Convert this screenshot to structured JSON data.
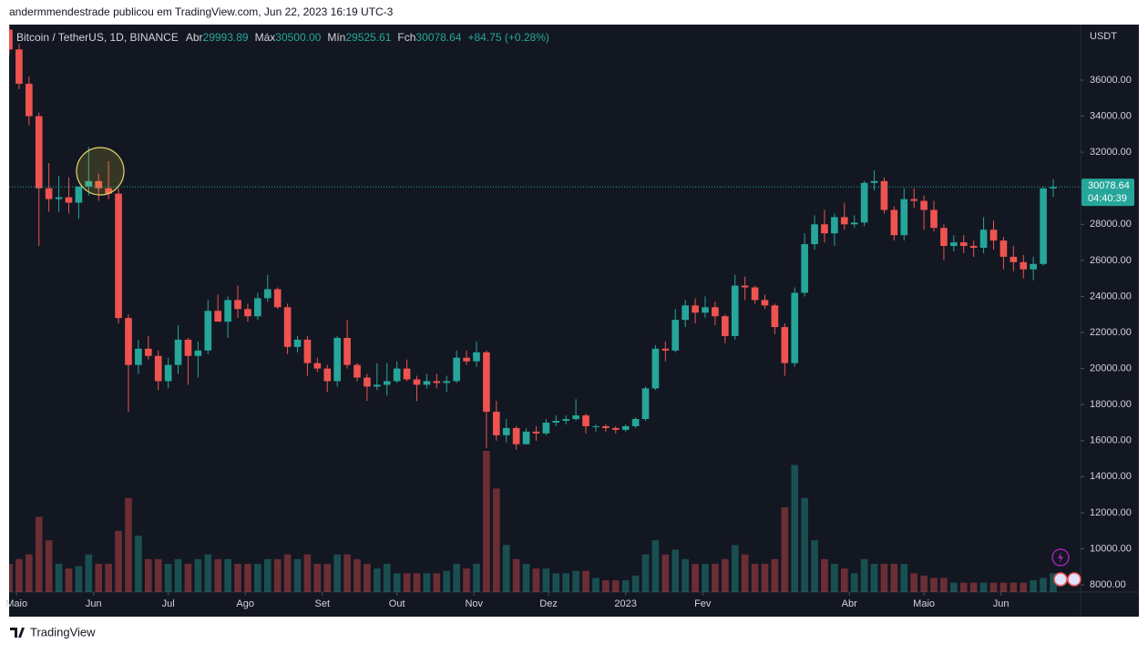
{
  "chart_data": {
    "type": "candlestick",
    "header": "andermmendestrade publicou em TradingView.com, Jun 22, 2023 16:19 UTC-3",
    "legend": {
      "symbol": "Bitcoin / TetherUS, 1D, BINANCE",
      "open_label": "Abr",
      "open": 29993.89,
      "high_label": "Máx",
      "high": {
        "value": 30500,
        "label": "30500.00"
      },
      "low_label": "Mín",
      "low": 29525.61,
      "close_label": "Fch",
      "close": 30078.64,
      "change": "+84.75 (+0.28%)"
    },
    "currency": "USDT",
    "last_price": 30078.64,
    "countdown": "04:40:39",
    "up_color": "#26a69a",
    "down_color": "#ef5350",
    "grid": false,
    "xlim": [
      "2022-04-28",
      "2023-07-03"
    ],
    "xticks": [
      {
        "value": "2022-05-01",
        "label": "Maio"
      },
      {
        "value": "2022-06-01",
        "label": "Jun"
      },
      {
        "value": "2022-07-01",
        "label": "Jul"
      },
      {
        "value": "2022-08-01",
        "label": "Ago"
      },
      {
        "value": "2022-09-01",
        "label": "Set"
      },
      {
        "value": "2022-10-01",
        "label": "Out"
      },
      {
        "value": "2022-11-01",
        "label": "Nov"
      },
      {
        "value": "2022-12-01",
        "label": "Dez"
      },
      {
        "value": "2023-01-01",
        "label": "2023"
      },
      {
        "value": "2023-02-01",
        "label": "Fev"
      },
      {
        "value": "2023-04-01",
        "label": "Abr"
      },
      {
        "value": "2023-05-01",
        "label": "Maio"
      },
      {
        "value": "2023-06-01",
        "label": "Jun"
      }
    ],
    "ylim": [
      7600,
      39080
    ],
    "yticks": [
      {
        "value": 8000,
        "label": "8000.00"
      },
      {
        "value": 10000,
        "label": "10000.00"
      },
      {
        "value": 12000,
        "label": "12000.00"
      },
      {
        "value": 14000,
        "label": "14000.00"
      },
      {
        "value": 16000,
        "label": "16000.00"
      },
      {
        "value": 18000,
        "label": "18000.00"
      },
      {
        "value": 20000,
        "label": "20000.00"
      },
      {
        "value": 22000,
        "label": "22000.00"
      },
      {
        "value": 24000,
        "label": "24000.00"
      },
      {
        "value": 26000,
        "label": "26000.00"
      },
      {
        "value": 28000,
        "label": "28000.00"
      },
      {
        "value": 30000,
        "label": "30000.00"
      },
      {
        "value": 32000,
        "label": "32000.00"
      },
      {
        "value": 34000,
        "label": "34000.00"
      },
      {
        "value": 36000,
        "label": "36000.00"
      }
    ],
    "x": [
      "2022-04-28",
      "2022-05-02",
      "2022-05-06",
      "2022-05-10",
      "2022-05-14",
      "2022-05-18",
      "2022-05-22",
      "2022-05-26",
      "2022-05-30",
      "2022-06-03",
      "2022-06-07",
      "2022-06-11",
      "2022-06-15",
      "2022-06-19",
      "2022-06-23",
      "2022-06-27",
      "2022-07-01",
      "2022-07-05",
      "2022-07-09",
      "2022-07-13",
      "2022-07-17",
      "2022-07-21",
      "2022-07-25",
      "2022-07-29",
      "2022-08-02",
      "2022-08-06",
      "2022-08-10",
      "2022-08-14",
      "2022-08-18",
      "2022-08-22",
      "2022-08-26",
      "2022-08-30",
      "2022-09-03",
      "2022-09-07",
      "2022-09-11",
      "2022-09-15",
      "2022-09-19",
      "2022-09-23",
      "2022-09-27",
      "2022-10-01",
      "2022-10-05",
      "2022-10-09",
      "2022-10-13",
      "2022-10-17",
      "2022-10-21",
      "2022-10-25",
      "2022-10-29",
      "2022-11-02",
      "2022-11-06",
      "2022-11-10",
      "2022-11-14",
      "2022-11-18",
      "2022-11-22",
      "2022-11-26",
      "2022-11-30",
      "2022-12-04",
      "2022-12-08",
      "2022-12-12",
      "2022-12-16",
      "2022-12-20",
      "2022-12-24",
      "2022-12-28",
      "2023-01-01",
      "2023-01-05",
      "2023-01-09",
      "2023-01-13",
      "2023-01-17",
      "2023-01-21",
      "2023-01-25",
      "2023-01-29",
      "2023-02-02",
      "2023-02-06",
      "2023-02-10",
      "2023-02-14",
      "2023-02-18",
      "2023-02-22",
      "2023-02-26",
      "2023-03-02",
      "2023-03-06",
      "2023-03-10",
      "2023-03-14",
      "2023-03-18",
      "2023-03-22",
      "2023-03-26",
      "2023-03-30",
      "2023-04-03",
      "2023-04-07",
      "2023-04-11",
      "2023-04-15",
      "2023-04-19",
      "2023-04-23",
      "2023-04-27",
      "2023-05-01",
      "2023-05-05",
      "2023-05-09",
      "2023-05-13",
      "2023-05-17",
      "2023-05-21",
      "2023-05-25",
      "2023-05-29",
      "2023-06-02",
      "2023-06-06",
      "2023-06-10",
      "2023-06-14",
      "2023-06-18",
      "2023-06-22"
    ],
    "open": [
      38800,
      37700,
      35800,
      34000,
      30000,
      29400,
      29500,
      29200,
      30100,
      30400,
      30000,
      29700,
      22800,
      20200,
      21100,
      20700,
      19300,
      20200,
      21600,
      20700,
      21000,
      23200,
      22600,
      23800,
      23300,
      22900,
      23900,
      24400,
      23400,
      21200,
      21600,
      20300,
      20000,
      19300,
      21700,
      20200,
      19500,
      19000,
      19100,
      19300,
      20000,
      19400,
      19100,
      19300,
      19200,
      19300,
      20600,
      20400,
      20900,
      17600,
      16300,
      16700,
      15800,
      16500,
      16400,
      17000,
      17100,
      17200,
      17400,
      16800,
      16800,
      16700,
      16600,
      16800,
      17200,
      18900,
      21100,
      21000,
      22700,
      23500,
      23100,
      23400,
      22900,
      21800,
      24600,
      24500,
      23800,
      23500,
      22300,
      20300,
      24200,
      26900,
      28000,
      27500,
      28400,
      28000,
      28100,
      30300,
      30400,
      28800,
      27400,
      29400,
      29300,
      28800,
      27800,
      26800,
      27000,
      26800,
      26700,
      27700,
      27100,
      26200,
      25900,
      25500,
      25800,
      29993.89
    ],
    "high": [
      39400,
      38000,
      36200,
      34200,
      31400,
      30700,
      30600,
      29800,
      32300,
      30800,
      31500,
      30000,
      23000,
      21600,
      21800,
      21000,
      20600,
      22400,
      21700,
      21500,
      23800,
      24100,
      24000,
      24600,
      23600,
      24200,
      25200,
      24500,
      23600,
      21800,
      21800,
      20600,
      20200,
      21800,
      22700,
      20300,
      19700,
      20300,
      20300,
      20400,
      20500,
      19600,
      19700,
      19700,
      19600,
      21000,
      21000,
      21500,
      21000,
      18200,
      17200,
      16800,
      16700,
      16800,
      17200,
      17400,
      17400,
      18300,
      17500,
      16900,
      16900,
      16800,
      16900,
      17300,
      19000,
      21300,
      21500,
      23300,
      23800,
      23900,
      24000,
      23700,
      23000,
      25200,
      25100,
      24600,
      24100,
      23600,
      22500,
      24500,
      27500,
      28500,
      28800,
      28600,
      29200,
      28500,
      30400,
      31000,
      30600,
      29000,
      30000,
      30000,
      29600,
      29300,
      28000,
      27400,
      27400,
      27100,
      28400,
      28200,
      27300,
      26800,
      26300,
      26200,
      30100,
      30500
    ],
    "low": [
      37400,
      35500,
      33500,
      26800,
      28700,
      28700,
      28600,
      28300,
      29600,
      29300,
      29400,
      22500,
      17600,
      19700,
      20500,
      18800,
      18900,
      19700,
      19100,
      19500,
      20800,
      22600,
      21700,
      22800,
      22600,
      22700,
      23700,
      23300,
      20800,
      20900,
      19600,
      19800,
      18700,
      19000,
      20000,
      19300,
      18200,
      18800,
      18500,
      19200,
      19300,
      18200,
      18900,
      18900,
      18700,
      19200,
      20200,
      20100,
      15600,
      16000,
      15900,
      15500,
      15800,
      16000,
      16300,
      16800,
      16900,
      17100,
      16400,
      16500,
      16500,
      16400,
      16500,
      16700,
      17100,
      18800,
      20400,
      20900,
      22300,
      22500,
      22800,
      22400,
      21400,
      21600,
      23800,
      23600,
      23300,
      21900,
      19600,
      20100,
      24000,
      26600,
      27000,
      26800,
      27700,
      27800,
      27900,
      29900,
      28600,
      27100,
      27100,
      28900,
      27700,
      27600,
      26000,
      26500,
      26400,
      26200,
      26400,
      26600,
      25500,
      25400,
      25000,
      24900,
      25700,
      29525.61
    ],
    "close": [
      37700,
      35800,
      34000,
      30000,
      29400,
      29500,
      29200,
      30100,
      30400,
      30000,
      29700,
      22800,
      20200,
      21100,
      20700,
      19300,
      20200,
      21600,
      20700,
      21000,
      23200,
      22600,
      23800,
      23300,
      22900,
      23900,
      24400,
      23400,
      21200,
      21600,
      20300,
      20000,
      19300,
      21700,
      20200,
      19500,
      19000,
      19100,
      19300,
      20000,
      19400,
      19100,
      19300,
      19200,
      19300,
      20600,
      20400,
      20900,
      17600,
      16300,
      16700,
      15800,
      16500,
      16400,
      17000,
      17100,
      17200,
      17400,
      16800,
      16800,
      16700,
      16600,
      16800,
      17200,
      18900,
      21100,
      21000,
      22700,
      23500,
      23100,
      23400,
      22900,
      21800,
      24600,
      24500,
      23800,
      23500,
      22300,
      20300,
      24200,
      26900,
      28000,
      27500,
      28400,
      28000,
      28100,
      30300,
      30400,
      28800,
      27400,
      29400,
      29300,
      28800,
      27800,
      26800,
      27000,
      26800,
      26700,
      27700,
      27100,
      26200,
      25900,
      25500,
      25800,
      29990,
      30078.64
    ],
    "volume": [
      60,
      70,
      80,
      160,
      110,
      60,
      50,
      55,
      80,
      60,
      60,
      130,
      200,
      120,
      70,
      70,
      60,
      70,
      60,
      70,
      80,
      70,
      70,
      60,
      60,
      60,
      70,
      70,
      80,
      70,
      80,
      60,
      60,
      80,
      80,
      70,
      60,
      50,
      60,
      40,
      40,
      40,
      40,
      40,
      45,
      60,
      50,
      60,
      300,
      220,
      100,
      70,
      60,
      50,
      50,
      40,
      40,
      45,
      45,
      30,
      25,
      25,
      25,
      35,
      80,
      110,
      80,
      90,
      70,
      60,
      60,
      60,
      70,
      100,
      80,
      60,
      60,
      70,
      180,
      270,
      200,
      110,
      70,
      60,
      50,
      40,
      70,
      60,
      60,
      60,
      60,
      40,
      35,
      30,
      30,
      20,
      20,
      20,
      20,
      20,
      20,
      20,
      20,
      25,
      30,
      40
    ]
  },
  "brand": "TradingView"
}
